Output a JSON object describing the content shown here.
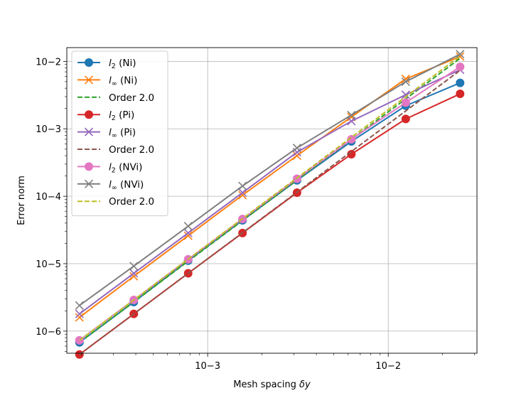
{
  "chart_data": {
    "type": "line",
    "xscale": "log",
    "yscale": "log",
    "xlabel": "Mesh spacing δy",
    "ylabel": "Error norm",
    "xlim": [
      0.000166,
      0.031
    ],
    "ylim": [
      4.7e-07,
      0.016
    ],
    "grid": true,
    "legend_position": "upper-left",
    "x": [
      0.000195,
      0.00039,
      0.00078,
      0.00156,
      0.003125,
      0.00625,
      0.0125,
      0.025
    ],
    "xticks": [
      {
        "value": 0.001,
        "label": "10−3"
      },
      {
        "value": 0.01,
        "label": "10−2"
      }
    ],
    "yticks": [
      {
        "value": 1e-06,
        "label": "10−6"
      },
      {
        "value": 1e-05,
        "label": "10−5"
      },
      {
        "value": 0.0001,
        "label": "10−4"
      },
      {
        "value": 0.001,
        "label": "10−3"
      },
      {
        "value": 0.01,
        "label": "10−2"
      }
    ],
    "series": [
      {
        "name": "l2 (Ni)",
        "label_main": "l",
        "label_sub": "2",
        "label_rest": " (Ni)",
        "color": "#1f77b4",
        "marker": "circle",
        "dash": false,
        "values": [
          6.8e-07,
          2.7e-06,
          1.11e-05,
          4.4e-05,
          0.000172,
          0.00065,
          0.0022,
          0.0048
        ]
      },
      {
        "name": "l∞ (Ni)",
        "label_main": "l",
        "label_sub": "∞",
        "label_rest": " (Ni)",
        "color": "#ff7f0e",
        "marker": "x",
        "dash": false,
        "values": [
          1.6e-06,
          6.5e-06,
          2.6e-05,
          0.000104,
          0.0004,
          0.0015,
          0.0055,
          0.0118
        ]
      },
      {
        "name": "Order 2.0",
        "label_main": "Order 2.0",
        "label_sub": "",
        "label_rest": "",
        "color": "#2ca02c",
        "marker": "none",
        "dash": true,
        "values": [
          6.8e-07,
          2.7e-06,
          1.09e-05,
          4.35e-05,
          0.000174,
          0.000696,
          0.00278,
          0.0111
        ]
      },
      {
        "name": "l2 (Pi)",
        "label_main": "l",
        "label_sub": "2",
        "label_rest": " (Pi)",
        "color": "#d62728",
        "marker": "circle",
        "dash": false,
        "values": [
          4.5e-07,
          1.8e-06,
          7.2e-06,
          2.85e-05,
          0.000113,
          0.00042,
          0.0014,
          0.0033
        ]
      },
      {
        "name": "l∞ (Pi)",
        "label_main": "l",
        "label_sub": "∞",
        "label_rest": " (Pi)",
        "color": "#9467bd",
        "marker": "x",
        "dash": false,
        "values": [
          1.8e-06,
          7.2e-06,
          2.85e-05,
          0.000113,
          0.00045,
          0.0013,
          0.0032,
          0.0075
        ]
      },
      {
        "name": "Order 2.0",
        "label_main": "Order 2.0",
        "label_sub": "",
        "label_rest": "",
        "color": "#8c564b",
        "marker": "none",
        "dash": true,
        "values": [
          4.5e-07,
          1.8e-06,
          7.2e-06,
          2.88e-05,
          0.000115,
          0.000461,
          0.00184,
          0.00737
        ]
      },
      {
        "name": "l2 (NVi)",
        "label_main": "l",
        "label_sub": "2",
        "label_rest": " (NVi)",
        "color": "#e377c2",
        "marker": "circle",
        "dash": false,
        "values": [
          7.3e-07,
          2.9e-06,
          1.16e-05,
          4.6e-05,
          0.000182,
          0.0007,
          0.00245,
          0.0083
        ]
      },
      {
        "name": "l∞ (NVi)",
        "label_main": "l",
        "label_sub": "∞",
        "label_rest": " (NVi)",
        "color": "#7f7f7f",
        "marker": "x",
        "dash": false,
        "values": [
          2.4e-06,
          9.2e-06,
          3.6e-05,
          0.000142,
          0.00052,
          0.0016,
          0.005,
          0.0128
        ]
      },
      {
        "name": "Order 2.0",
        "label_main": "Order 2.0",
        "label_sub": "",
        "label_rest": "",
        "color": "#bcbd22",
        "marker": "none",
        "dash": true,
        "values": [
          7.3e-07,
          2.9e-06,
          1.17e-05,
          4.67e-05,
          0.000187,
          0.000748,
          0.00299,
          0.012
        ]
      }
    ]
  }
}
